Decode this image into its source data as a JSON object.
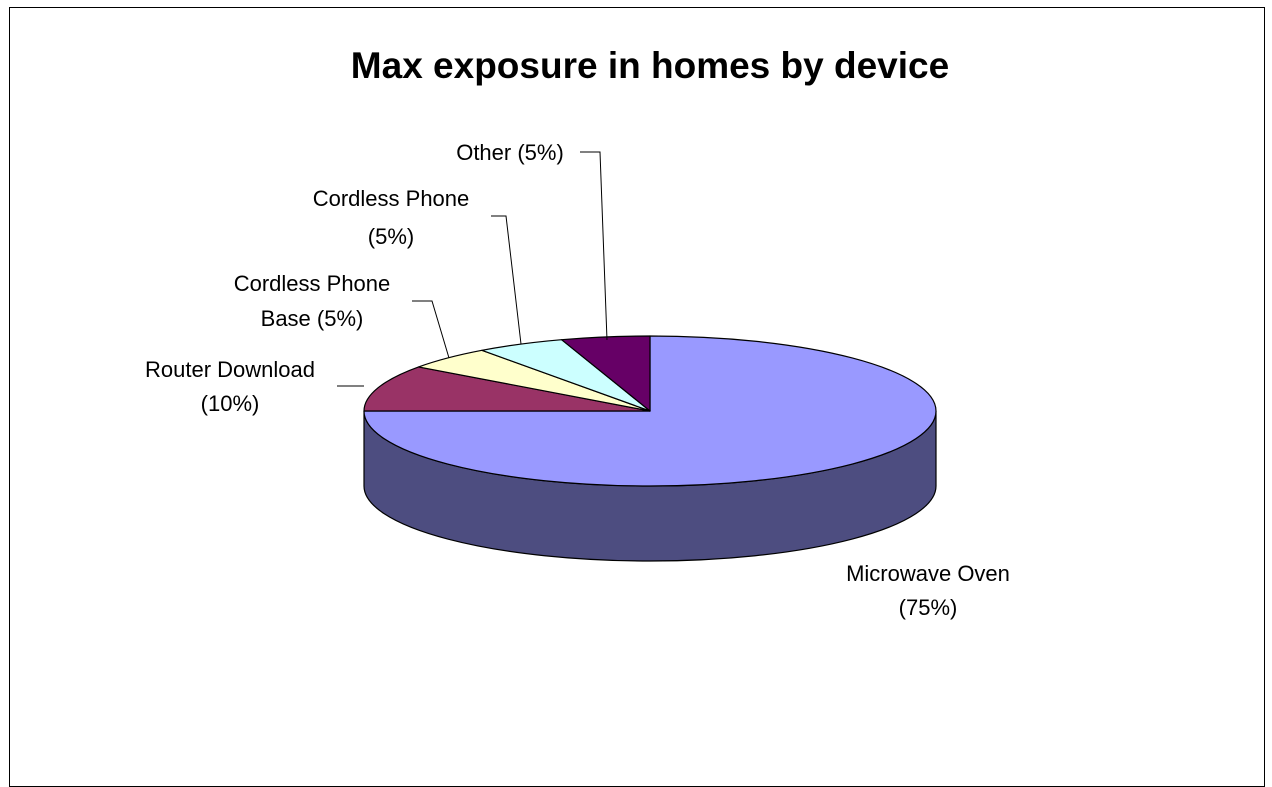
{
  "chart_data": {
    "type": "pie",
    "title": "Max exposure in homes by device",
    "slices": [
      {
        "name": "Microwave Oven",
        "value": 75,
        "label_line1": "Microwave Oven",
        "label_line2": "(75%)",
        "color": "#9999ff",
        "side_color": "#4d4d80"
      },
      {
        "name": "Router Download",
        "value": 10,
        "label_line1": "Router Download",
        "label_line2": "(10%)",
        "color": "#993366",
        "side_color": "#4d1a33"
      },
      {
        "name": "Cordless Phone Base",
        "value": 5,
        "label_line1": "Cordless Phone",
        "label_line2": "Base (5%)",
        "color": "#ffffcc",
        "side_color": "#808066"
      },
      {
        "name": "Cordless Phone",
        "value": 5,
        "label_line1": "Cordless Phone",
        "label_line2": "(5%)",
        "color": "#ccffff",
        "side_color": "#668080"
      },
      {
        "name": "Other",
        "value": 5,
        "label_line1": "Other (5%)",
        "label_line2": "",
        "color": "#660066",
        "side_color": "#330033"
      }
    ]
  }
}
